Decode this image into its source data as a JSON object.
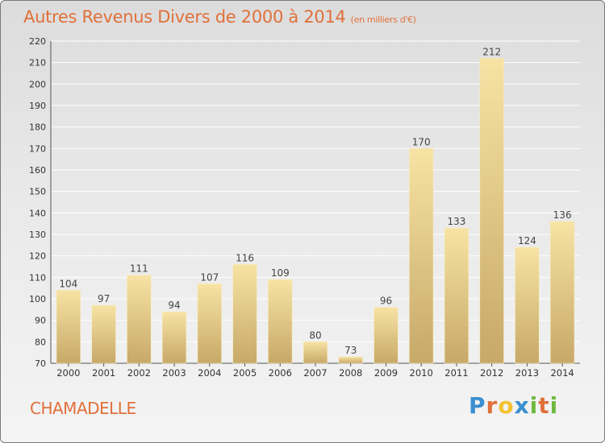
{
  "header": {
    "title": "Autres Revenus Divers de 2000 à 2014",
    "unit": "(en milliers d'€)"
  },
  "footer": {
    "town": "CHAMADELLE",
    "logo_text": "Proxiti"
  },
  "chart_data": {
    "type": "bar",
    "title": "Autres Revenus Divers de 2000 à 2014",
    "subtitle": "(en milliers d'€)",
    "categories": [
      "2000",
      "2001",
      "2002",
      "2003",
      "2004",
      "2005",
      "2006",
      "2007",
      "2008",
      "2009",
      "2010",
      "2011",
      "2012",
      "2013",
      "2014"
    ],
    "values": [
      104,
      97,
      111,
      94,
      107,
      116,
      109,
      80,
      73,
      96,
      170,
      133,
      212,
      124,
      136
    ],
    "ylim": [
      70,
      220
    ],
    "yticks": [
      70,
      80,
      90,
      100,
      110,
      120,
      130,
      140,
      150,
      160,
      170,
      180,
      190,
      200,
      210,
      220
    ],
    "grid": true,
    "colors": {
      "bar_light": "#f5dc98",
      "bar_dark": "#c8aa6a",
      "grid": "#ffffff",
      "axis_text": "#333333",
      "title": "#e0703a"
    }
  }
}
